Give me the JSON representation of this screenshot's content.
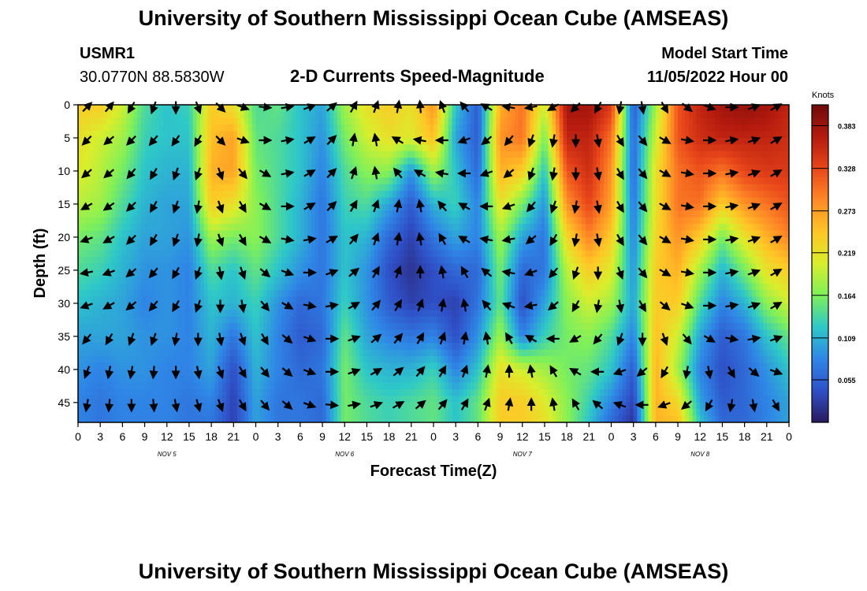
{
  "header": {
    "title": "University of Southern Mississippi Ocean Cube (AMSEAS)",
    "station": "USMR1",
    "coords": "30.0770N  88.5830W",
    "subtitle": "2-D Currents Speed-Magnitude",
    "model_label": "Model Start Time",
    "model_time": "11/05/2022 Hour 00",
    "footer_title": "University of Southern Mississippi Ocean Cube (AMSEAS)"
  },
  "colors": {
    "scale": [
      "#2a1a5e",
      "#2f50c8",
      "#2f86e6",
      "#2ec8c8",
      "#7ef05a",
      "#d9ee2c",
      "#ffc626",
      "#ff8826",
      "#e8461a",
      "#b41a0e",
      "#6e0a0a"
    ],
    "arrow": "#000000",
    "frame": "#000000"
  },
  "chart_data": {
    "type": "heatmap",
    "title": "2-D Currents Speed-Magnitude",
    "xlabel": "Forecast Time(Z)",
    "ylabel": "Depth (ft)",
    "colorbar_label": "Knots",
    "colorbar_ticks": [
      "0.383",
      "0.328",
      "0.273",
      "0.219",
      "0.164",
      "0.109",
      "0.055"
    ],
    "colorbar_tick_values": [
      0.383,
      0.328,
      0.273,
      0.219,
      0.164,
      0.109,
      0.055
    ],
    "colorbar_range": [
      0,
      0.41
    ],
    "xlim": [
      0,
      96
    ],
    "ylim": [
      0,
      48
    ],
    "x_tick_values": [
      0,
      3,
      6,
      9,
      12,
      15,
      18,
      21,
      24,
      27,
      30,
      33,
      36,
      39,
      42,
      45,
      48,
      51,
      54,
      57,
      60,
      63,
      66,
      69,
      72,
      75,
      78,
      81,
      84,
      87,
      90,
      93,
      96
    ],
    "x_tick_labels": [
      "0",
      "3",
      "6",
      "9",
      "12",
      "15",
      "18",
      "21",
      "0",
      "3",
      "6",
      "9",
      "12",
      "15",
      "18",
      "21",
      "0",
      "3",
      "6",
      "9",
      "12",
      "15",
      "18",
      "21",
      "0",
      "3",
      "6",
      "9",
      "12",
      "15",
      "18",
      "21",
      "0"
    ],
    "y_tick_values": [
      0,
      5,
      10,
      15,
      20,
      25,
      30,
      35,
      40,
      45
    ],
    "y_tick_labels": [
      "0",
      "5",
      "10",
      "15",
      "20",
      "25",
      "30",
      "35",
      "40",
      "45"
    ],
    "day_labels": [
      {
        "text": "NOV 5",
        "at": 12
      },
      {
        "text": "NOV 6",
        "at": 36
      },
      {
        "text": "NOV 7",
        "at": 60
      },
      {
        "text": "NOV 8",
        "at": 84
      }
    ],
    "speed_depths_ft": [
      0,
      5,
      10,
      15,
      20,
      25,
      30,
      35,
      40,
      45,
      48
    ],
    "speed_times_h": [
      0,
      3,
      6,
      9,
      12,
      15,
      18,
      21,
      24,
      27,
      30,
      33,
      36,
      39,
      42,
      45,
      48,
      51,
      54,
      57,
      60,
      63,
      66,
      69,
      72,
      75,
      78,
      81,
      84,
      87,
      90,
      93,
      96
    ],
    "speed_knots": [
      [
        0.24,
        0.24,
        0.2,
        0.14,
        0.12,
        0.13,
        0.24,
        0.22,
        0.14,
        0.15,
        0.12,
        0.1,
        0.18,
        0.22,
        0.24,
        0.22,
        0.28,
        0.12,
        0.05,
        0.26,
        0.3,
        0.2,
        0.38,
        0.38,
        0.34,
        0.05,
        0.18,
        0.32,
        0.36,
        0.38,
        0.39,
        0.38,
        0.36
      ],
      [
        0.22,
        0.2,
        0.18,
        0.13,
        0.12,
        0.12,
        0.25,
        0.27,
        0.15,
        0.14,
        0.12,
        0.09,
        0.16,
        0.2,
        0.22,
        0.21,
        0.25,
        0.1,
        0.05,
        0.28,
        0.3,
        0.16,
        0.36,
        0.36,
        0.3,
        0.06,
        0.2,
        0.32,
        0.35,
        0.36,
        0.36,
        0.36,
        0.35
      ],
      [
        0.21,
        0.19,
        0.16,
        0.12,
        0.11,
        0.11,
        0.26,
        0.27,
        0.16,
        0.14,
        0.12,
        0.08,
        0.14,
        0.17,
        0.17,
        0.09,
        0.18,
        0.12,
        0.06,
        0.26,
        0.24,
        0.12,
        0.32,
        0.35,
        0.28,
        0.06,
        0.22,
        0.3,
        0.32,
        0.3,
        0.33,
        0.34,
        0.34
      ],
      [
        0.19,
        0.18,
        0.14,
        0.11,
        0.1,
        0.1,
        0.24,
        0.22,
        0.17,
        0.14,
        0.11,
        0.07,
        0.13,
        0.14,
        0.1,
        0.05,
        0.11,
        0.13,
        0.08,
        0.22,
        0.16,
        0.09,
        0.28,
        0.33,
        0.27,
        0.07,
        0.22,
        0.3,
        0.3,
        0.24,
        0.28,
        0.3,
        0.32
      ],
      [
        0.16,
        0.15,
        0.12,
        0.1,
        0.1,
        0.09,
        0.18,
        0.16,
        0.17,
        0.14,
        0.11,
        0.07,
        0.12,
        0.11,
        0.06,
        0.03,
        0.07,
        0.1,
        0.08,
        0.18,
        0.1,
        0.07,
        0.23,
        0.29,
        0.24,
        0.08,
        0.23,
        0.28,
        0.24,
        0.16,
        0.22,
        0.26,
        0.29
      ],
      [
        0.14,
        0.13,
        0.11,
        0.09,
        0.09,
        0.08,
        0.14,
        0.12,
        0.15,
        0.12,
        0.09,
        0.07,
        0.12,
        0.09,
        0.04,
        0.02,
        0.04,
        0.06,
        0.06,
        0.16,
        0.06,
        0.07,
        0.19,
        0.24,
        0.21,
        0.09,
        0.24,
        0.26,
        0.18,
        0.11,
        0.16,
        0.22,
        0.24
      ],
      [
        0.12,
        0.11,
        0.1,
        0.08,
        0.09,
        0.08,
        0.12,
        0.11,
        0.13,
        0.09,
        0.06,
        0.07,
        0.13,
        0.09,
        0.05,
        0.03,
        0.04,
        0.03,
        0.07,
        0.15,
        0.04,
        0.1,
        0.17,
        0.2,
        0.18,
        0.1,
        0.24,
        0.24,
        0.14,
        0.08,
        0.11,
        0.17,
        0.2
      ],
      [
        0.1,
        0.1,
        0.1,
        0.09,
        0.09,
        0.08,
        0.11,
        0.07,
        0.12,
        0.08,
        0.05,
        0.06,
        0.15,
        0.1,
        0.08,
        0.07,
        0.08,
        0.04,
        0.09,
        0.18,
        0.08,
        0.13,
        0.16,
        0.17,
        0.14,
        0.08,
        0.25,
        0.2,
        0.1,
        0.05,
        0.07,
        0.12,
        0.15
      ],
      [
        0.09,
        0.08,
        0.09,
        0.09,
        0.08,
        0.08,
        0.1,
        0.04,
        0.11,
        0.08,
        0.06,
        0.07,
        0.16,
        0.12,
        0.11,
        0.11,
        0.13,
        0.08,
        0.12,
        0.22,
        0.2,
        0.18,
        0.16,
        0.15,
        0.12,
        0.05,
        0.26,
        0.18,
        0.08,
        0.04,
        0.06,
        0.09,
        0.12
      ],
      [
        0.08,
        0.07,
        0.08,
        0.08,
        0.08,
        0.07,
        0.08,
        0.03,
        0.1,
        0.07,
        0.07,
        0.06,
        0.16,
        0.14,
        0.13,
        0.14,
        0.15,
        0.12,
        0.15,
        0.24,
        0.24,
        0.21,
        0.17,
        0.13,
        0.08,
        0.03,
        0.26,
        0.23,
        0.1,
        0.05,
        0.06,
        0.08,
        0.1
      ],
      [
        0.08,
        0.07,
        0.08,
        0.08,
        0.08,
        0.07,
        0.07,
        0.03,
        0.1,
        0.07,
        0.07,
        0.06,
        0.16,
        0.14,
        0.13,
        0.14,
        0.15,
        0.12,
        0.15,
        0.24,
        0.24,
        0.22,
        0.17,
        0.12,
        0.06,
        0.02,
        0.26,
        0.25,
        0.12,
        0.06,
        0.06,
        0.08,
        0.1
      ]
    ],
    "arrow_times_h": [
      1,
      4,
      7,
      10,
      13,
      16,
      19,
      22,
      25,
      28,
      31,
      34,
      37,
      40,
      43,
      46,
      49,
      52,
      55,
      58,
      61,
      64,
      67,
      70,
      73,
      76,
      79,
      82,
      85,
      88,
      91,
      94
    ],
    "arrow_depths_ft": [
      0,
      5,
      10,
      15,
      20,
      25,
      30,
      35,
      40,
      45
    ],
    "arrow_dir_deg": [
      [
        45,
        40,
        210,
        200,
        180,
        160,
        135,
        110,
        95,
        80,
        70,
        50,
        30,
        20,
        10,
        355,
        340,
        320,
        300,
        280,
        260,
        240,
        225,
        210,
        190,
        170,
        150,
        130,
        110,
        90,
        70,
        60
      ],
      [
        225,
        230,
        225,
        220,
        215,
        210,
        135,
        110,
        90,
        80,
        60,
        45,
        10,
        350,
        300,
        280,
        270,
        250,
        230,
        220,
        200,
        190,
        180,
        170,
        150,
        140,
        120,
        100,
        90,
        80,
        70,
        60
      ],
      [
        230,
        230,
        220,
        210,
        200,
        200,
        160,
        140,
        120,
        80,
        60,
        45,
        20,
        350,
        320,
        300,
        280,
        270,
        250,
        230,
        200,
        190,
        180,
        170,
        150,
        140,
        120,
        100,
        90,
        80,
        70,
        60
      ],
      [
        240,
        235,
        225,
        210,
        200,
        190,
        160,
        150,
        120,
        90,
        60,
        45,
        30,
        20,
        10,
        350,
        320,
        300,
        270,
        250,
        220,
        200,
        190,
        170,
        150,
        140,
        120,
        100,
        90,
        80,
        70,
        60
      ],
      [
        250,
        240,
        225,
        210,
        200,
        190,
        160,
        150,
        120,
        100,
        80,
        60,
        40,
        20,
        10,
        350,
        330,
        300,
        280,
        260,
        230,
        210,
        190,
        170,
        150,
        140,
        120,
        100,
        90,
        80,
        70,
        60
      ],
      [
        260,
        250,
        230,
        220,
        210,
        200,
        170,
        160,
        130,
        110,
        90,
        70,
        50,
        30,
        20,
        0,
        350,
        330,
        310,
        280,
        250,
        220,
        200,
        180,
        160,
        140,
        120,
        100,
        90,
        80,
        70,
        60
      ],
      [
        250,
        240,
        230,
        220,
        210,
        200,
        180,
        170,
        140,
        120,
        100,
        80,
        60,
        40,
        30,
        20,
        10,
        350,
        320,
        290,
        260,
        230,
        210,
        190,
        170,
        150,
        130,
        110,
        90,
        80,
        70,
        60
      ],
      [
        220,
        210,
        200,
        200,
        190,
        180,
        170,
        160,
        150,
        130,
        110,
        90,
        70,
        50,
        40,
        30,
        20,
        10,
        350,
        330,
        300,
        270,
        240,
        220,
        200,
        180,
        160,
        140,
        120,
        100,
        80,
        70
      ],
      [
        200,
        190,
        190,
        185,
        180,
        170,
        160,
        150,
        140,
        130,
        110,
        90,
        70,
        60,
        50,
        40,
        30,
        20,
        10,
        0,
        350,
        330,
        300,
        270,
        250,
        230,
        210,
        190,
        170,
        150,
        130,
        110
      ],
      [
        190,
        185,
        180,
        175,
        170,
        165,
        160,
        150,
        140,
        130,
        110,
        95,
        80,
        70,
        60,
        50,
        40,
        30,
        20,
        10,
        0,
        350,
        330,
        310,
        290,
        270,
        250,
        230,
        210,
        190,
        170,
        150
      ]
    ]
  }
}
